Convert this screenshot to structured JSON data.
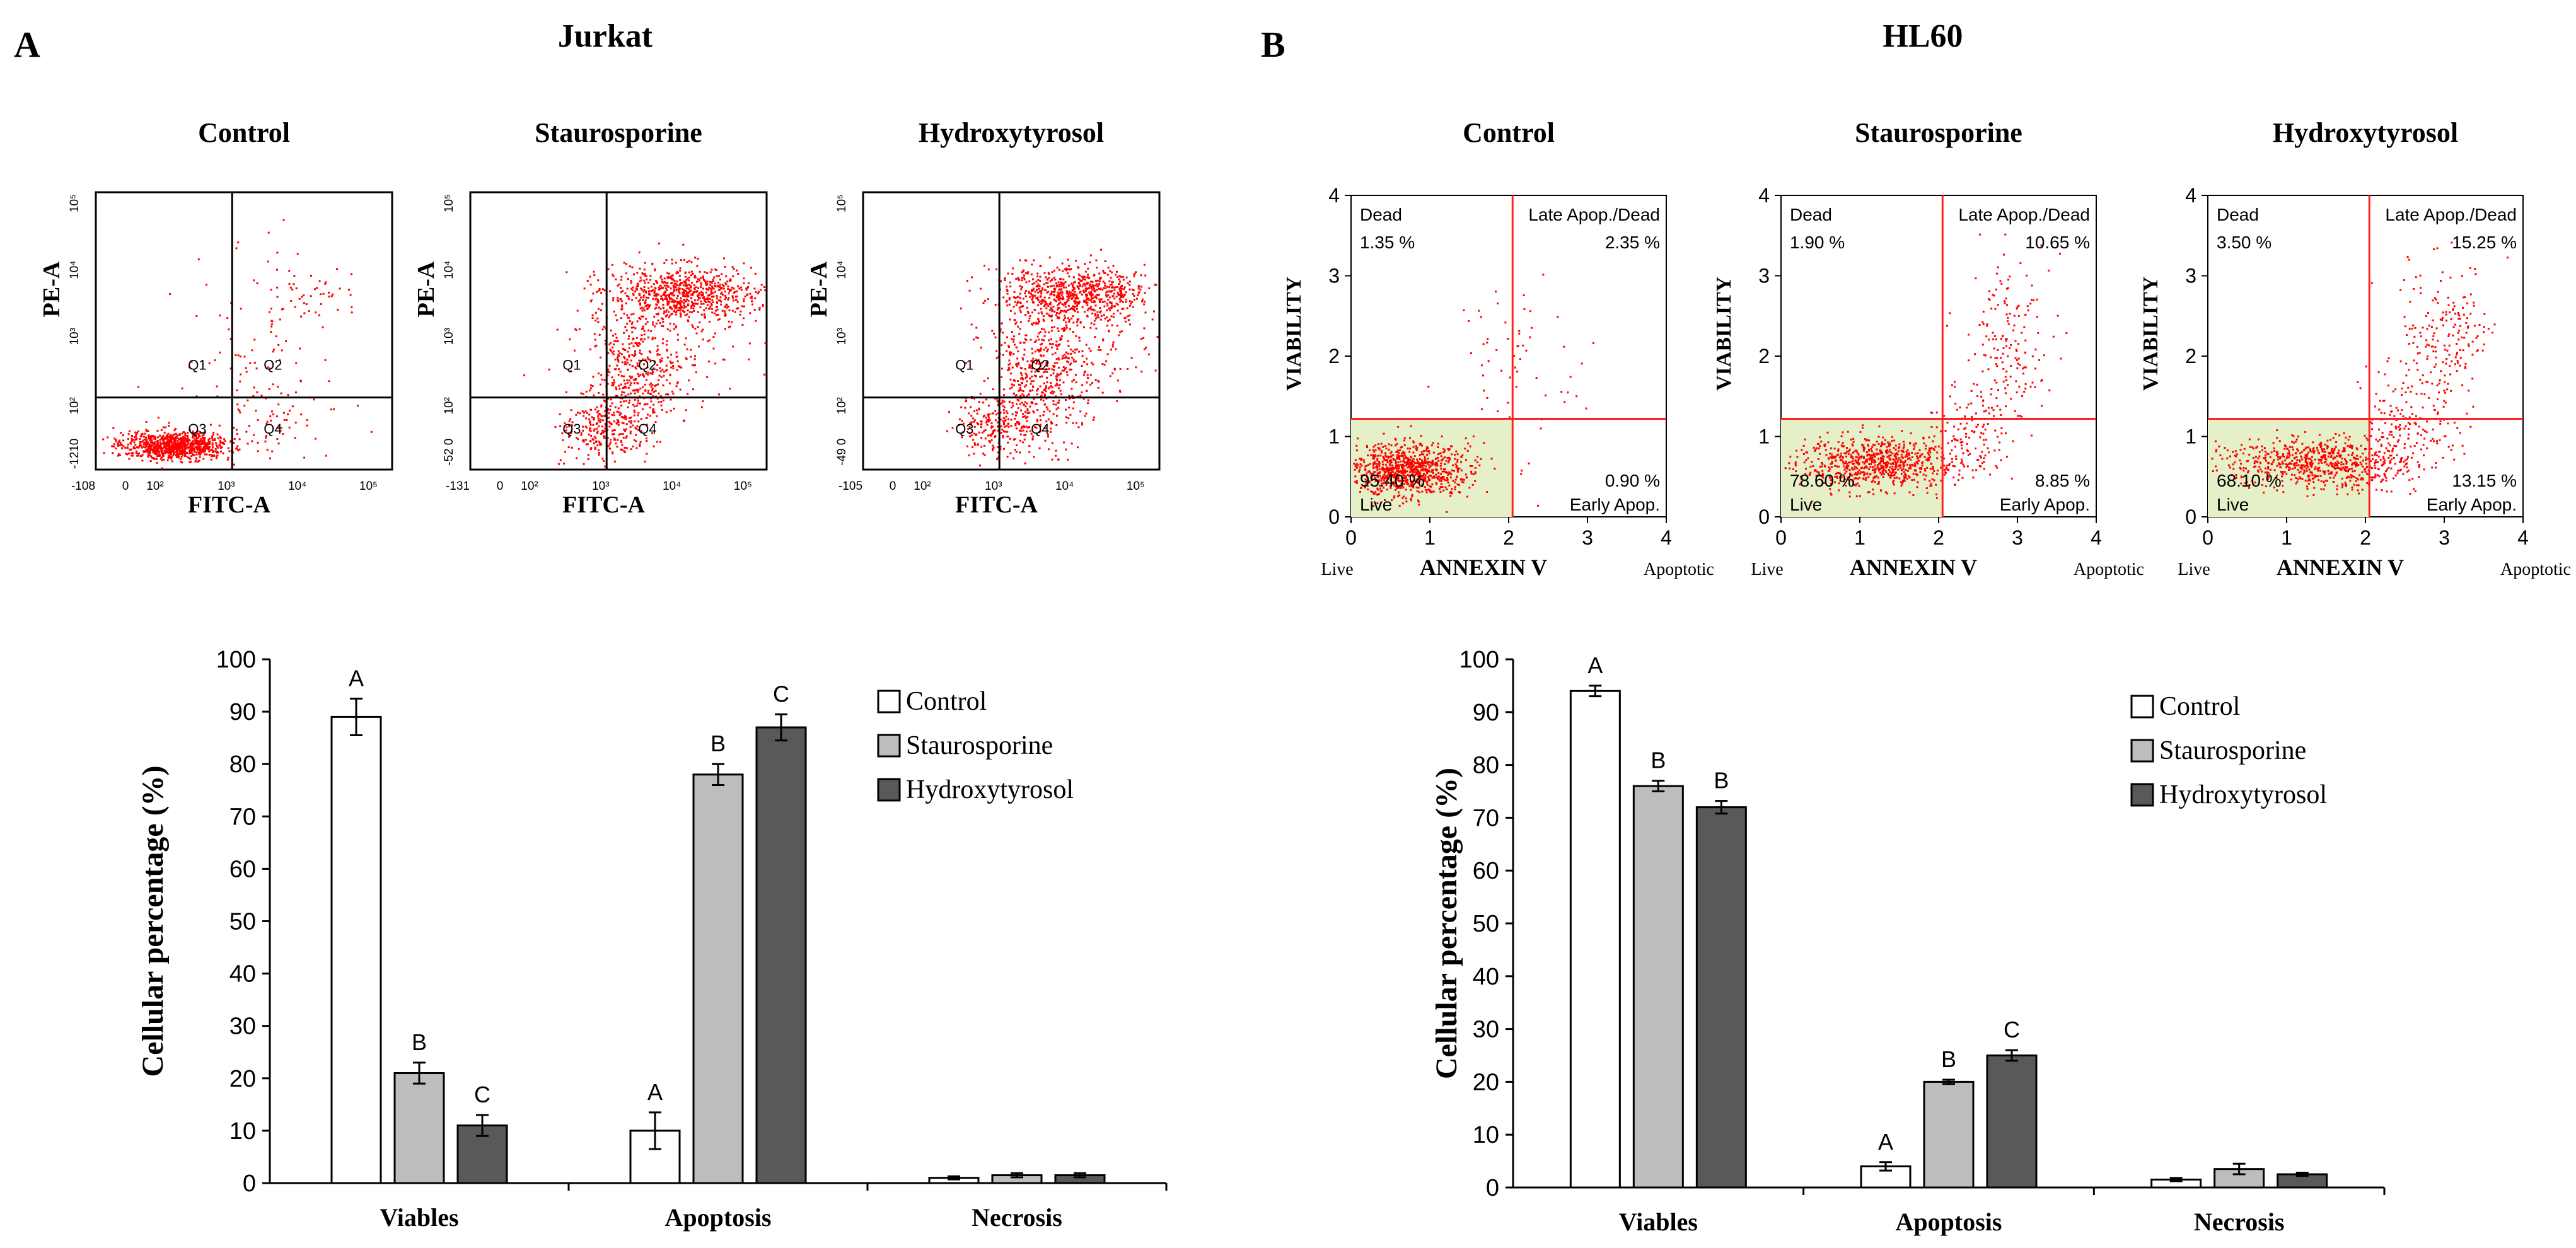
{
  "chart_data": [
    {
      "type": "scatter",
      "subtype": "flow-cytometry-dotplot",
      "panel": "A",
      "cell_line": "Jurkat",
      "xlabel": "FITC-A",
      "ylabel": "PE-A",
      "x_tick_labels": [
        "-108",
        "0",
        "10²",
        "10³",
        "10⁴",
        "10⁵"
      ],
      "plots": [
        {
          "title": "Control",
          "quadrants": [
            "Q1",
            "Q2",
            "Q3",
            "Q4"
          ],
          "y_tick_labels": [
            "-121",
            "0",
            "10²",
            "10³",
            "10⁴",
            "10⁵"
          ],
          "x_tick_labels": [
            "-108",
            "0",
            "10²",
            "10³",
            "10⁴",
            "10⁵"
          ]
        },
        {
          "title": "Staurosporine",
          "quadrants": [
            "Q1",
            "Q2",
            "Q3",
            "Q4"
          ],
          "y_tick_labels": [
            "-52",
            "0",
            "10²",
            "10³",
            "10⁴",
            "10⁵"
          ],
          "x_tick_labels": [
            "-131",
            "0",
            "10²",
            "10³",
            "10⁴",
            "10⁵"
          ]
        },
        {
          "title": "Hydroxytyrosol",
          "quadrants": [
            "Q1",
            "Q2",
            "Q3",
            "Q4"
          ],
          "y_tick_labels": [
            "-49",
            "0",
            "10²",
            "10³",
            "10⁴",
            "10⁵"
          ],
          "x_tick_labels": [
            "-105",
            "0",
            "10²",
            "10³",
            "10⁴",
            "10⁵"
          ]
        }
      ]
    },
    {
      "type": "scatter",
      "subtype": "flow-cytometry-dotplot",
      "panel": "B",
      "cell_line": "HL60",
      "xlabel": "ANNEXIN V",
      "ylabel": "VIABILITY",
      "x_end_labels": [
        "Live",
        "Apoptotic"
      ],
      "xlim": [
        0,
        4
      ],
      "ylim": [
        0,
        4
      ],
      "ticks": [
        0,
        1,
        2,
        3,
        4
      ],
      "plots": [
        {
          "title": "Control",
          "dead": "1.35 %",
          "late": "2.35 %",
          "live": "95.40 %",
          "early": "0.90 %"
        },
        {
          "title": "Staurosporine",
          "dead": "1.90 %",
          "late": "10.65 %",
          "live": "78.60 %",
          "early": "8.85 %"
        },
        {
          "title": "Hydroxytyrosol",
          "dead": "3.50 %",
          "late": "15.25 %",
          "live": "68.10 %",
          "early": "13.15 %"
        }
      ],
      "quadrant_labels": {
        "dead": "Dead",
        "late": "Late Apop./Dead",
        "live": "Live",
        "early": "Early Apop."
      }
    },
    {
      "type": "bar",
      "panel": "A",
      "categories": [
        "Viables",
        "Apoptosis",
        "Necrosis"
      ],
      "ylabel": "Cellular  percentage  (%)",
      "ylim": [
        0,
        100
      ],
      "yticks": [
        0,
        10,
        20,
        30,
        40,
        50,
        60,
        70,
        80,
        90,
        100
      ],
      "series": [
        {
          "name": "Control",
          "values": [
            89,
            10,
            1
          ],
          "errors": [
            3.5,
            3.5,
            0.3
          ]
        },
        {
          "name": "Staurosporine",
          "values": [
            21,
            78,
            1.5
          ],
          "errors": [
            2,
            2,
            0.4
          ]
        },
        {
          "name": "Hydroxytyrosol",
          "values": [
            11,
            87,
            1.5
          ],
          "errors": [
            2,
            2.5,
            0.4
          ]
        }
      ],
      "letters": [
        [
          "A",
          "B",
          "C"
        ],
        [
          "A",
          "B",
          "C"
        ],
        [
          "",
          "",
          ""
        ]
      ]
    },
    {
      "type": "bar",
      "panel": "B",
      "categories": [
        "Viables",
        "Apoptosis",
        "Necrosis"
      ],
      "ylabel": "Cellular  percentage  (%)",
      "ylim": [
        0,
        100
      ],
      "yticks": [
        0,
        10,
        20,
        30,
        40,
        50,
        60,
        70,
        80,
        90,
        100
      ],
      "series": [
        {
          "name": "Control",
          "values": [
            94,
            4,
            1.5
          ],
          "errors": [
            1,
            0.8,
            0.3
          ]
        },
        {
          "name": "Staurosporine",
          "values": [
            76,
            20,
            3.5
          ],
          "errors": [
            1,
            0.4,
            1
          ]
        },
        {
          "name": "Hydroxytyrosol",
          "values": [
            72,
            25,
            2.5
          ],
          "errors": [
            1.2,
            1,
            0.3
          ]
        }
      ],
      "letters": [
        [
          "A",
          "B",
          "B"
        ],
        [
          "A",
          "B",
          "C"
        ],
        [
          "",
          "",
          ""
        ]
      ]
    }
  ],
  "colors": {
    "control": "#ffffff",
    "staurosporine": "#bdbdbd",
    "hydroxytyrosol": "#595959",
    "dots": "#ff0000",
    "gate_line": "#ff2020",
    "gate_fill": "#e6f0c8"
  }
}
